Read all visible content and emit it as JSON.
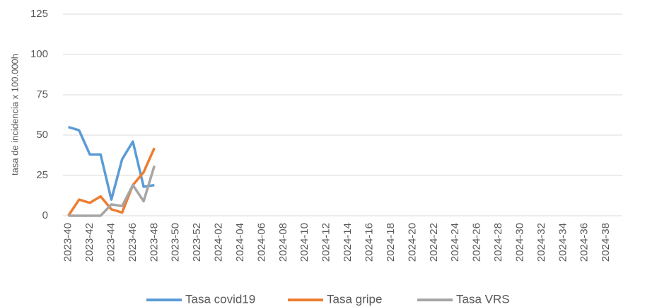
{
  "chart_data": {
    "type": "line",
    "ylabel": "tasa de incidencia x 100.000h",
    "categories": [
      "2023-40",
      null,
      "2023-42",
      null,
      "2023-44",
      null,
      "2023-46",
      null,
      "2023-48",
      null,
      "2023-50",
      null,
      "2023-52",
      null,
      "2024-02",
      null,
      "2024-04",
      null,
      "2024-06",
      null,
      "2024-08",
      null,
      "2024-10",
      null,
      "2024-12",
      null,
      "2024-14",
      null,
      "2024-16",
      null,
      "2024-18",
      null,
      "2024-20",
      null,
      "2024-22",
      null,
      "2024-24",
      null,
      "2024-26",
      null,
      "2024-28",
      null,
      "2024-30",
      null,
      "2024-32",
      null,
      "2024-34",
      null,
      "2024-36",
      null,
      "2024-38",
      null
    ],
    "series": [
      {
        "name": "Tasa covid19",
        "color": "#5b9bd5",
        "values": [
          55,
          53,
          38,
          38,
          10,
          35,
          46,
          18,
          19,
          null,
          null,
          null,
          null,
          null,
          null,
          null,
          null,
          null,
          null,
          null,
          null,
          null,
          null,
          null,
          null,
          null,
          null,
          null,
          null,
          null,
          null,
          null,
          null,
          null,
          null,
          null,
          null,
          null,
          null,
          null,
          null,
          null,
          null,
          null,
          null,
          null,
          null,
          null,
          null,
          null,
          null,
          null
        ]
      },
      {
        "name": "Tasa gripe",
        "color": "#ed7d31",
        "values": [
          0,
          10,
          8,
          12,
          4,
          2,
          19,
          27,
          42,
          null,
          null,
          null,
          null,
          null,
          null,
          null,
          null,
          null,
          null,
          null,
          null,
          null,
          null,
          null,
          null,
          null,
          null,
          null,
          null,
          null,
          null,
          null,
          null,
          null,
          null,
          null,
          null,
          null,
          null,
          null,
          null,
          null,
          null,
          null,
          null,
          null,
          null,
          null,
          null,
          null,
          null,
          null
        ]
      },
      {
        "name": "Tasa VRS",
        "color": "#a5a5a5",
        "values": [
          0,
          0,
          0,
          0,
          7,
          6,
          19,
          9,
          31,
          null,
          null,
          null,
          null,
          null,
          null,
          null,
          null,
          null,
          null,
          null,
          null,
          null,
          null,
          null,
          null,
          null,
          null,
          null,
          null,
          null,
          null,
          null,
          null,
          null,
          null,
          null,
          null,
          null,
          null,
          null,
          null,
          null,
          null,
          null,
          null,
          null,
          null,
          null,
          null,
          null,
          null,
          null
        ]
      }
    ],
    "ylim": [
      0,
      125
    ],
    "yticks": [
      0,
      25,
      50,
      75,
      100,
      125
    ],
    "grid": true,
    "legend": "bottom"
  }
}
